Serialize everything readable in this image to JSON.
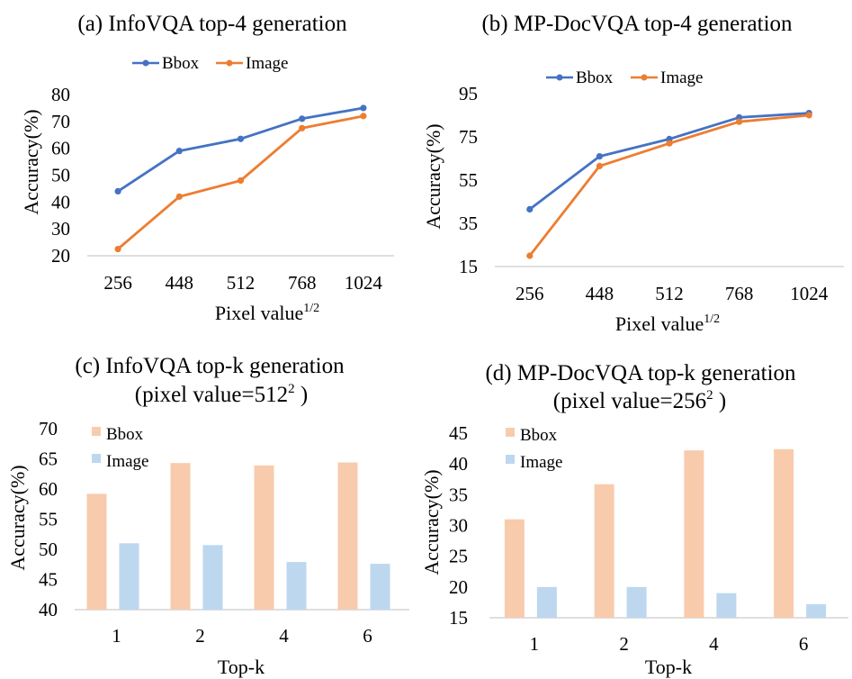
{
  "colors": {
    "bbox_line": "#4472C4",
    "image_line": "#ED7D31",
    "bbox_bar": "#F8CBAD",
    "image_bar": "#BDD7EE"
  },
  "chart_data": [
    {
      "id": "a",
      "type": "line",
      "title": "(a) InfoVQA top-4 generation",
      "categories": [
        "256",
        "448",
        "512",
        "768",
        "1024"
      ],
      "series": [
        {
          "name": "Bbox",
          "values": [
            44,
            59,
            63.5,
            71,
            75
          ]
        },
        {
          "name": "Image",
          "values": [
            22.5,
            42,
            48,
            67.5,
            72
          ]
        }
      ],
      "xlabel": "Pixel value",
      "xlabel_sup": "1/2",
      "ylabel": "Accuracy(%)",
      "ylim": [
        20,
        80
      ],
      "yticks": [
        20,
        30,
        40,
        50,
        60,
        70,
        80
      ]
    },
    {
      "id": "b",
      "type": "line",
      "title": "(b) MP-DocVQA top-4 generation",
      "categories": [
        "256",
        "448",
        "512",
        "768",
        "1024"
      ],
      "series": [
        {
          "name": "Bbox",
          "values": [
            41.5,
            66,
            74,
            84,
            86
          ]
        },
        {
          "name": "Image",
          "values": [
            20,
            61.5,
            72,
            82,
            85
          ]
        }
      ],
      "xlabel": "Pixel value",
      "xlabel_sup": "1/2",
      "ylabel": "Accuracy(%)",
      "ylim": [
        15,
        95
      ],
      "yticks": [
        15,
        35,
        55,
        75,
        95
      ]
    },
    {
      "id": "c",
      "type": "bar",
      "title_line1": "(c) InfoVQA top-k generation",
      "title_line2": "(pixel value=512",
      "title_sup": "2",
      "title_end": " )",
      "categories": [
        "1",
        "2",
        "4",
        "6"
      ],
      "series": [
        {
          "name": "Bbox",
          "values": [
            59.2,
            64.3,
            63.9,
            64.4
          ]
        },
        {
          "name": "Image",
          "values": [
            51,
            50.7,
            47.9,
            47.6
          ]
        }
      ],
      "xlabel": "Top-k",
      "ylabel": "Accuracy(%)",
      "ylim": [
        40,
        70
      ],
      "yticks": [
        40,
        45,
        50,
        55,
        60,
        65,
        70
      ]
    },
    {
      "id": "d",
      "type": "bar",
      "title_line1": "(d) MP-DocVQA top-k generation",
      "title_line2": "(pixel value=256",
      "title_sup": "2",
      "title_end": " )",
      "categories": [
        "1",
        "2",
        "4",
        "6"
      ],
      "series": [
        {
          "name": "Bbox",
          "values": [
            31,
            36.7,
            42.2,
            42.4
          ]
        },
        {
          "name": "Image",
          "values": [
            20,
            20,
            19,
            17.2
          ]
        }
      ],
      "xlabel": "Top-k",
      "ylabel": "Accuracy(%)",
      "ylim": [
        15,
        45
      ],
      "yticks": [
        15,
        20,
        25,
        30,
        35,
        40,
        45
      ]
    }
  ]
}
